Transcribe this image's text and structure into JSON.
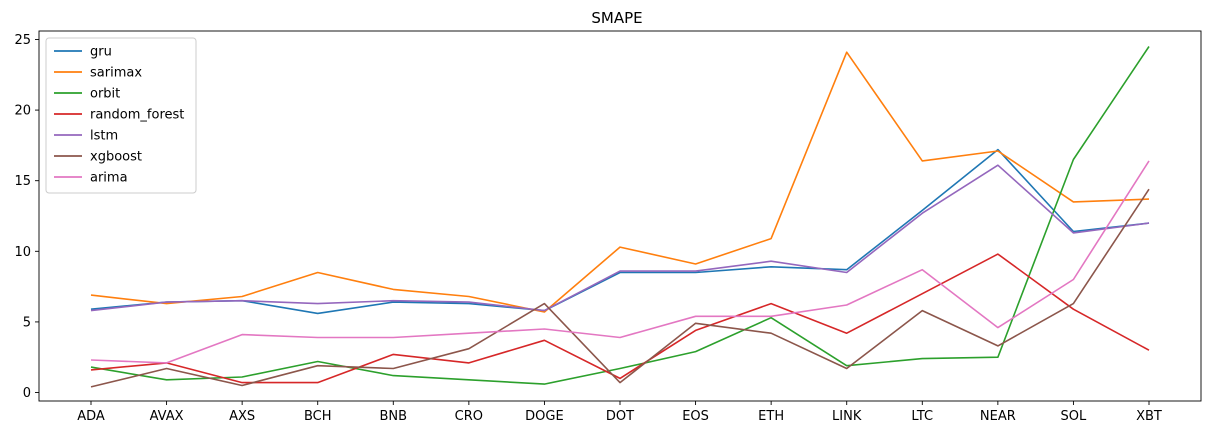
{
  "chart_data": {
    "type": "line",
    "title": "SMAPE",
    "xlabel": "",
    "ylabel": "",
    "ylim": [
      -0.6,
      25.6
    ],
    "yticks": [
      0,
      5,
      10,
      15,
      20,
      25
    ],
    "categories": [
      "ADA",
      "AVAX",
      "AXS",
      "BCH",
      "BNB",
      "CRO",
      "DOGE",
      "DOT",
      "EOS",
      "ETH",
      "LINK",
      "LTC",
      "NEAR",
      "SOL",
      "XBT"
    ],
    "legend_position": "top-left",
    "series": [
      {
        "name": "gru",
        "color": "#1f77b4",
        "values": [
          5.9,
          6.4,
          6.5,
          5.6,
          6.4,
          6.3,
          5.8,
          8.5,
          8.5,
          8.9,
          8.7,
          12.9,
          17.2,
          11.4,
          12.0
        ]
      },
      {
        "name": "sarimax",
        "color": "#ff7f0e",
        "values": [
          6.9,
          6.3,
          6.8,
          8.5,
          7.3,
          6.8,
          5.7,
          10.3,
          9.1,
          10.9,
          24.1,
          16.4,
          17.1,
          13.5,
          13.7
        ]
      },
      {
        "name": "orbit",
        "color": "#2ca02c",
        "values": [
          1.8,
          0.9,
          1.1,
          2.2,
          1.2,
          0.9,
          0.6,
          1.7,
          2.9,
          5.3,
          1.9,
          2.4,
          2.5,
          16.5,
          24.5
        ]
      },
      {
        "name": "random_forest",
        "color": "#d62728",
        "values": [
          1.6,
          2.1,
          0.7,
          0.7,
          2.7,
          2.1,
          3.7,
          1.0,
          4.4,
          6.3,
          4.2,
          7.0,
          9.8,
          5.9,
          3.0
        ]
      },
      {
        "name": "lstm",
        "color": "#9467bd",
        "values": [
          5.8,
          6.4,
          6.5,
          6.3,
          6.5,
          6.4,
          5.8,
          8.6,
          8.6,
          9.3,
          8.5,
          12.7,
          16.1,
          11.3,
          12.0
        ]
      },
      {
        "name": "xgboost",
        "color": "#8c564b",
        "values": [
          0.4,
          1.7,
          0.5,
          1.9,
          1.7,
          3.1,
          6.3,
          0.7,
          4.9,
          4.2,
          1.7,
          5.8,
          3.3,
          6.3,
          14.4
        ]
      },
      {
        "name": "arima",
        "color": "#e377c2",
        "values": [
          2.3,
          2.1,
          4.1,
          3.9,
          3.9,
          4.2,
          4.5,
          3.9,
          5.4,
          5.4,
          6.2,
          8.7,
          4.6,
          8.0,
          16.4
        ]
      }
    ]
  }
}
